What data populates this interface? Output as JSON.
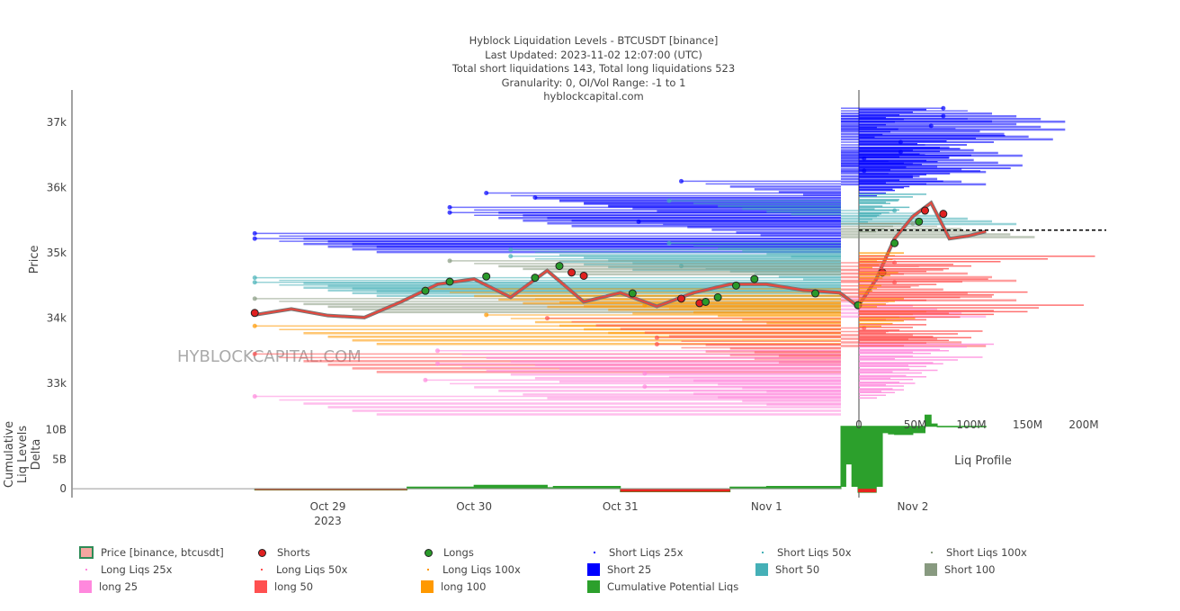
{
  "chart_data": {
    "type": "line",
    "title": "Hyblock Liquidation Levels - BTCUSDT [binance]",
    "subtitle_lines": [
      "Last Updated: 2023-11-02 12:07:00 (UTC)",
      "Total short liquidations 143, Total long liquidations 523",
      "Granularity: 0, OI/Vol Range: -1 to 1",
      "hyblockcapital.com"
    ],
    "watermark": "HYBLOCKCAPITAL.COM",
    "price_panel": {
      "ylabel": "Price",
      "ylim": [
        32600,
        37500
      ],
      "yticks": [
        33000,
        34000,
        35000,
        36000,
        37000
      ],
      "ytick_labels": [
        "33k",
        "34k",
        "35k",
        "36k",
        "37k"
      ],
      "current_price": 35350
    },
    "delta_panel": {
      "ylabel_lines": [
        "Cumulative",
        "Liq Levels",
        "Delta"
      ],
      "ylim": [
        -1.5,
        13
      ],
      "yticks": [
        0,
        5,
        10
      ],
      "ytick_labels": [
        "0",
        "5B",
        "10B"
      ]
    },
    "profile_panel": {
      "xlabel": "Liq Profile",
      "xlim": [
        0,
        220
      ],
      "xticks": [
        0,
        50,
        100,
        150,
        200
      ],
      "xtick_labels": [
        "0",
        "50M",
        "100M",
        "150M",
        "200M"
      ]
    },
    "xaxis": {
      "range_hours": [
        -42,
        84.2
      ],
      "ticks": [
        0,
        24,
        48,
        72,
        96
      ],
      "tick_labels": [
        "Oct 29",
        "Oct 30",
        "Oct 31",
        "Nov 1",
        "Nov 2"
      ],
      "year_label": "2023",
      "zero": "2023-10-29 00:00"
    },
    "price_series": {
      "name": "Price [binance, btcusdt]",
      "hours": [
        -12,
        -6,
        0,
        6,
        12,
        18,
        24,
        30,
        36,
        42,
        48,
        54,
        60,
        66,
        72,
        78,
        84,
        87,
        90,
        93,
        96,
        99,
        102,
        105,
        108
      ],
      "values": [
        34050,
        34140,
        34040,
        34010,
        34250,
        34520,
        34600,
        34320,
        34730,
        34250,
        34390,
        34180,
        34390,
        34520,
        34520,
        34430,
        34390,
        34180,
        34600,
        35220,
        35560,
        35770,
        35220,
        35260,
        35330
      ]
    },
    "shorts_points": {
      "hours": [
        -12,
        40,
        42,
        58,
        61,
        91,
        98,
        101
      ],
      "values": [
        34080,
        34700,
        34650,
        34300,
        34230,
        34700,
        35650,
        35600
      ]
    },
    "longs_points": {
      "hours": [
        16,
        20,
        26,
        34,
        38,
        50,
        62,
        64,
        67,
        70,
        80,
        87,
        93,
        97
      ],
      "values": [
        34420,
        34560,
        34640,
        34620,
        34800,
        34380,
        34250,
        34320,
        34500,
        34600,
        34380,
        34200,
        35150,
        35480
      ]
    },
    "liq_levels": [
      {
        "type": "short25",
        "price": 37220,
        "start": 101
      },
      {
        "type": "short25",
        "price": 37100,
        "start": 101
      },
      {
        "type": "short25",
        "price": 36950,
        "start": 99
      },
      {
        "type": "short25",
        "price": 36700,
        "start": 94
      },
      {
        "type": "short25",
        "price": 36550,
        "start": 94
      },
      {
        "type": "short25",
        "price": 36450,
        "start": 88
      },
      {
        "type": "short25",
        "price": 36260,
        "start": 88
      },
      {
        "type": "short25",
        "price": 36100,
        "start": 58
      },
      {
        "type": "short25",
        "price": 35920,
        "start": 26
      },
      {
        "type": "short25",
        "price": 35850,
        "start": 34
      },
      {
        "type": "short25",
        "price": 35700,
        "start": 20
      },
      {
        "type": "short25",
        "price": 35620,
        "start": 20
      },
      {
        "type": "short25",
        "price": 35480,
        "start": 51
      },
      {
        "type": "short25",
        "price": 35300,
        "start": -12
      },
      {
        "type": "short25",
        "price": 35220,
        "start": -12
      },
      {
        "type": "short50",
        "price": 35800,
        "start": 56
      },
      {
        "type": "short50",
        "price": 35650,
        "start": 93
      },
      {
        "type": "short50",
        "price": 35150,
        "start": 56
      },
      {
        "type": "short50",
        "price": 35050,
        "start": 30
      },
      {
        "type": "short50",
        "price": 34950,
        "start": 30
      },
      {
        "type": "short50",
        "price": 34800,
        "start": 58
      },
      {
        "type": "short50",
        "price": 34620,
        "start": -12
      },
      {
        "type": "short50",
        "price": 34550,
        "start": -12
      },
      {
        "type": "short100",
        "price": 35450,
        "start": 96
      },
      {
        "type": "short100",
        "price": 34880,
        "start": 20
      },
      {
        "type": "short100",
        "price": 34300,
        "start": -12
      },
      {
        "type": "long100",
        "price": 34450,
        "start": 16
      },
      {
        "type": "long100",
        "price": 34350,
        "start": 30
      },
      {
        "type": "long100",
        "price": 34200,
        "start": 52
      },
      {
        "type": "long100",
        "price": 34050,
        "start": 26
      },
      {
        "type": "long100",
        "price": 33880,
        "start": -12
      },
      {
        "type": "long50",
        "price": 34850,
        "start": 93
      },
      {
        "type": "long50",
        "price": 34550,
        "start": 93
      },
      {
        "type": "long50",
        "price": 34000,
        "start": 36
      },
      {
        "type": "long50",
        "price": 33850,
        "start": 88
      },
      {
        "type": "long50",
        "price": 33700,
        "start": 54
      },
      {
        "type": "long50",
        "price": 33600,
        "start": 54
      },
      {
        "type": "long50",
        "price": 33450,
        "start": -12
      },
      {
        "type": "long25",
        "price": 34300,
        "start": 88
      },
      {
        "type": "long25",
        "price": 33500,
        "start": 18
      },
      {
        "type": "long25",
        "price": 33300,
        "start": 18
      },
      {
        "type": "long25",
        "price": 33150,
        "start": 52
      },
      {
        "type": "long25",
        "price": 33050,
        "start": 16
      },
      {
        "type": "long25",
        "price": 32950,
        "start": 52
      },
      {
        "type": "long25",
        "price": 32800,
        "start": -12
      }
    ],
    "delta_series": {
      "name": "Cumulative Potential Liqs",
      "hours": [
        -12,
        12,
        13,
        24,
        36,
        37,
        48,
        60,
        66,
        72,
        84,
        85,
        86,
        87,
        88,
        90,
        91,
        92,
        93,
        96,
        98,
        99,
        100,
        108
      ],
      "values": [
        -0.2,
        -0.2,
        0.3,
        0.6,
        0.2,
        0.4,
        -0.5,
        -0.5,
        0.3,
        0.4,
        0.4,
        4.2,
        0.4,
        -0.6,
        -0.6,
        0.4,
        9.5,
        9.3,
        9.2,
        9.5,
        12.5,
        11,
        10.5,
        10.6
      ]
    },
    "profile": {
      "short25": [
        [
          37200,
          60
        ],
        [
          37050,
          40
        ],
        [
          36900,
          35
        ],
        [
          36800,
          130
        ],
        [
          36700,
          120
        ],
        [
          36600,
          90
        ],
        [
          36500,
          100
        ],
        [
          36400,
          70
        ],
        [
          36300,
          135
        ],
        [
          36200,
          60
        ],
        [
          36100,
          75
        ],
        [
          36000,
          40
        ]
      ],
      "short50": [
        [
          35900,
          60
        ],
        [
          35800,
          35
        ],
        [
          35700,
          45
        ],
        [
          35600,
          20
        ]
      ],
      "short100": [
        [
          35450,
          38
        ]
      ],
      "long100": [
        [
          35000,
          40
        ],
        [
          34900,
          30
        ],
        [
          34700,
          35
        ],
        [
          34500,
          20
        ],
        [
          34300,
          40
        ],
        [
          34100,
          60
        ],
        [
          34000,
          50
        ]
      ],
      "long50": [
        [
          34950,
          210
        ],
        [
          34800,
          100
        ],
        [
          34600,
          115
        ],
        [
          34400,
          150
        ],
        [
          34200,
          200
        ],
        [
          34100,
          150
        ],
        [
          33900,
          60
        ],
        [
          33800,
          110
        ],
        [
          33700,
          100
        ]
      ],
      "long25": [
        [
          33600,
          120
        ],
        [
          33500,
          80
        ],
        [
          33400,
          110
        ],
        [
          33300,
          75
        ],
        [
          33200,
          70
        ],
        [
          33100,
          60
        ],
        [
          33000,
          50
        ],
        [
          32900,
          40
        ]
      ]
    },
    "colors": {
      "short25": "#0000ff",
      "short50": "#45b0b7",
      "short100": "#889a80",
      "long25": "#ff88dd",
      "long50": "#ff5050",
      "long100": "#ff9900",
      "delta": "#2ca02c",
      "price_up": "#2e8b57",
      "price_down": "#e8473d",
      "shorts": "#e02020",
      "longs": "#2a9a2a"
    }
  },
  "legend": [
    {
      "label": "Price [binance, btcusdt]",
      "kind": "price"
    },
    {
      "label": "Shorts",
      "kind": "dot",
      "color": "#e02020"
    },
    {
      "label": "Longs",
      "kind": "dot",
      "color": "#2a9a2a"
    },
    {
      "label": "Short Liqs 25x",
      "kind": "tiny",
      "color": "#0000ff"
    },
    {
      "label": "Short Liqs 50x",
      "kind": "tiny",
      "color": "#45b0b7"
    },
    {
      "label": "Short Liqs 100x",
      "kind": "tiny",
      "color": "#889a80"
    },
    {
      "label": "Long Liqs 25x",
      "kind": "tiny",
      "color": "#ff88dd"
    },
    {
      "label": "Long Liqs 50x",
      "kind": "tiny",
      "color": "#ff5050"
    },
    {
      "label": "Long Liqs 100x",
      "kind": "tiny",
      "color": "#ff9900"
    },
    {
      "label": "Short 25",
      "kind": "box",
      "color": "#0000ff"
    },
    {
      "label": "Short 50",
      "kind": "box",
      "color": "#45b0b7"
    },
    {
      "label": "Short 100",
      "kind": "box",
      "color": "#889a80"
    },
    {
      "label": "long 25",
      "kind": "box",
      "color": "#ff88dd"
    },
    {
      "label": "long 50",
      "kind": "box",
      "color": "#ff5050"
    },
    {
      "label": "long 100",
      "kind": "box",
      "color": "#ff9900"
    },
    {
      "label": "Cumulative Potential Liqs",
      "kind": "box",
      "color": "#2ca02c"
    }
  ]
}
